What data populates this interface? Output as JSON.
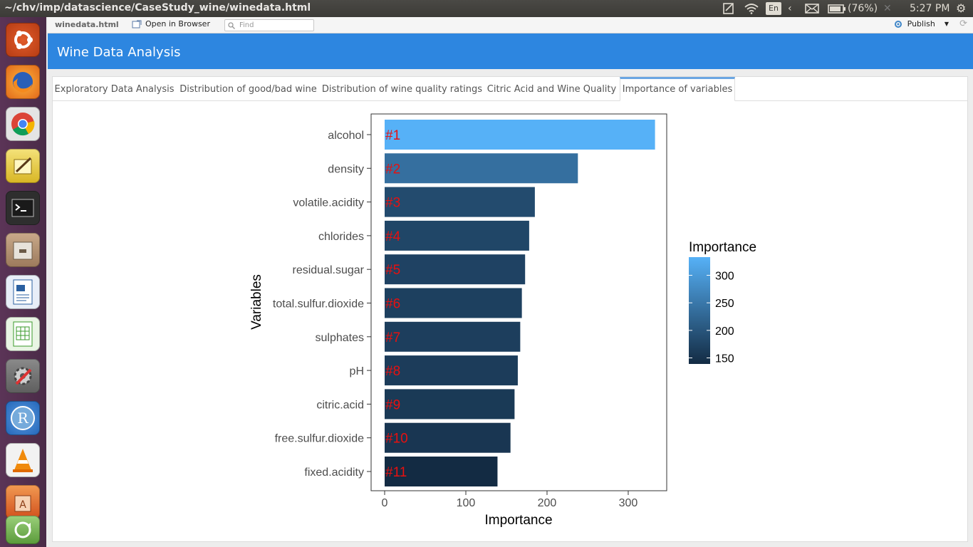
{
  "window": {
    "title": "~/chv/imp/datascience/CaseStudy_wine/winedata.html",
    "keyboard": "En",
    "battery": "(76%)",
    "time": "5:27 PM"
  },
  "viewer": {
    "file_name": "winedata.html",
    "open_in_browser": "Open in Browser",
    "find_placeholder": "Find",
    "publish": "Publish"
  },
  "app": {
    "title": "Wine Data Analysis",
    "tabs": [
      {
        "label": "Exploratory Data Analysis"
      },
      {
        "label": "Distribution of good/bad wine"
      },
      {
        "label": "Distribution of wine quality ratings"
      },
      {
        "label": "Citric Acid and Wine Quality"
      },
      {
        "label": "Importance of variables"
      }
    ],
    "active_tab": "Importance of variables"
  },
  "colors": {
    "accent": "#2d86e0",
    "bar_high": "#56b1f7",
    "bar_low": "#132b43",
    "rank_label": "#e8100f"
  },
  "chart_data": {
    "type": "bar",
    "orientation": "horizontal",
    "xlabel": "Importance",
    "ylabel": "Variables",
    "xlim": [
      0,
      350
    ],
    "xticks": [
      0,
      100,
      200,
      300
    ],
    "categories": [
      "alcohol",
      "density",
      "volatile.acidity",
      "chlorides",
      "residual.sugar",
      "total.sulfur.dioxide",
      "sulphates",
      "pH",
      "citric.acid",
      "free.sulfur.dioxide",
      "fixed.acidity"
    ],
    "values": [
      333,
      238,
      185,
      178,
      173,
      169,
      167,
      164,
      160,
      155,
      139
    ],
    "rank_labels": [
      "#1",
      "#2",
      "#3",
      "#4",
      "#5",
      "#6",
      "#7",
      "#8",
      "#9",
      "#10",
      "#11"
    ],
    "legend": {
      "title": "Importance",
      "ticks": [
        300,
        250,
        200,
        150
      ],
      "range": [
        139,
        333
      ],
      "placement": "right"
    }
  }
}
